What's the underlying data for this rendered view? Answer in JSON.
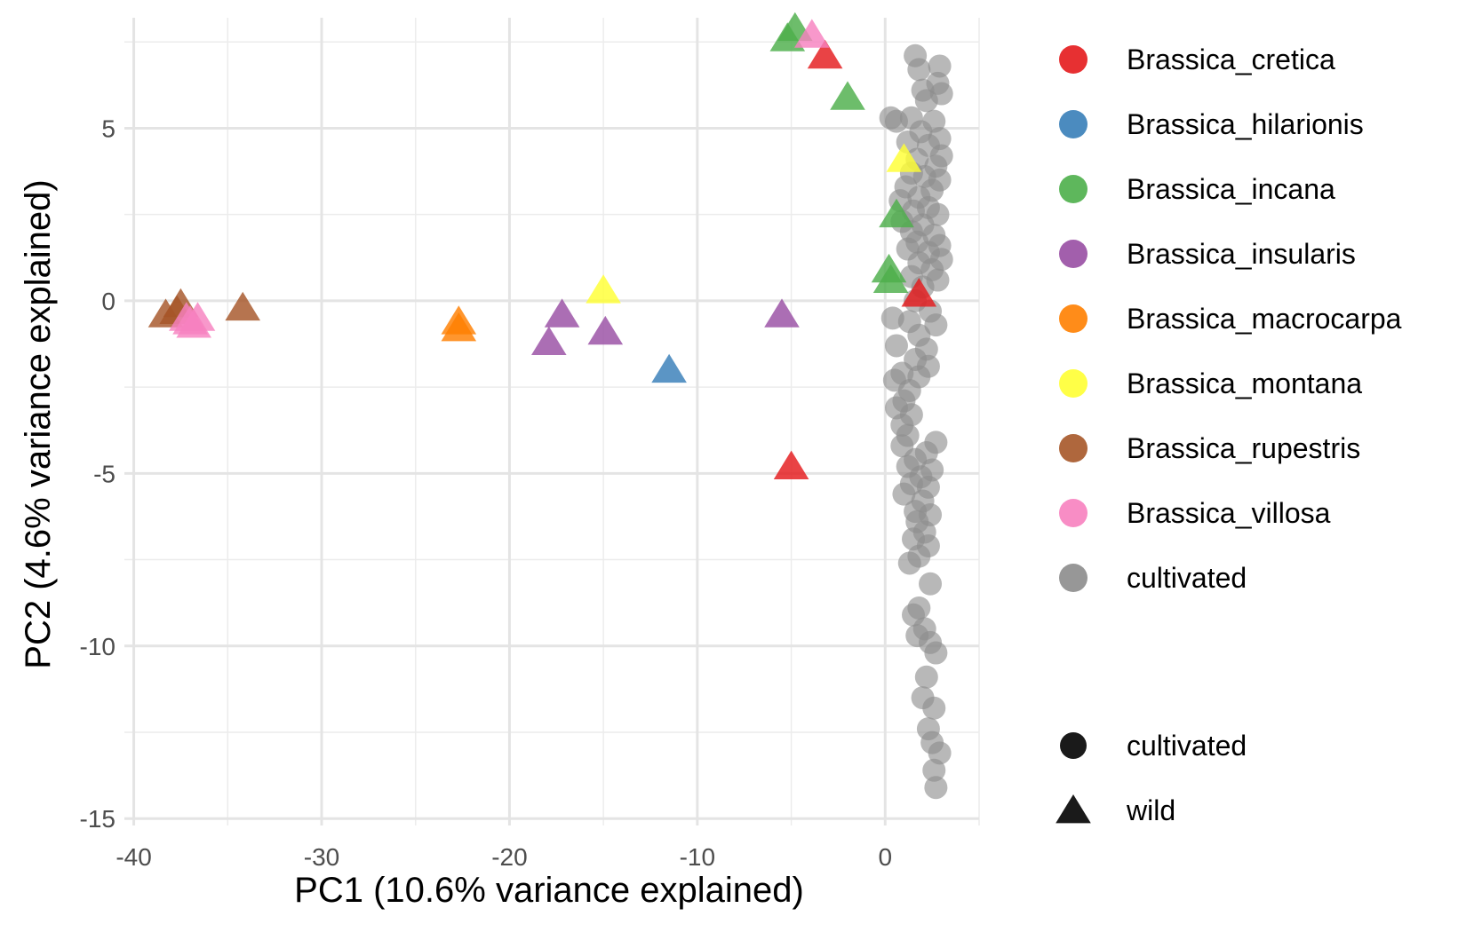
{
  "chart_data": {
    "type": "scatter",
    "title": "",
    "xlabel": "PC1 (10.6% variance explained)",
    "ylabel": "PC2 (4.6% variance explained)",
    "xlim": [
      -40.5,
      5
    ],
    "ylim": [
      -15.2,
      8.2
    ],
    "x_ticks": [
      -40,
      -30,
      -20,
      -10,
      0
    ],
    "x_tick_labels": [
      "-40",
      "-30",
      "-20",
      "-10",
      "0"
    ],
    "y_ticks": [
      -15,
      -10,
      -5,
      0,
      5
    ],
    "y_tick_labels": [
      "-15",
      "-10",
      "-5",
      "0",
      "5"
    ],
    "grid": true,
    "legend_position": "right",
    "color_legend": [
      {
        "name": "Brassica_cretica",
        "color": "#E41A1C"
      },
      {
        "name": "Brassica_hilarionis",
        "color": "#377EB8"
      },
      {
        "name": "Brassica_incana",
        "color": "#4DAF4A"
      },
      {
        "name": "Brassica_insularis",
        "color": "#984EA3"
      },
      {
        "name": "Brassica_macrocarpa",
        "color": "#FF7F00"
      },
      {
        "name": "Brassica_montana",
        "color": "#FFFF33"
      },
      {
        "name": "Brassica_rupestris",
        "color": "#A65628"
      },
      {
        "name": "Brassica_villosa",
        "color": "#F781BF"
      },
      {
        "name": "cultivated",
        "color": "#8C8C8C"
      }
    ],
    "shape_legend": [
      {
        "name": "cultivated",
        "shape": "circle"
      },
      {
        "name": "wild",
        "shape": "triangle"
      }
    ],
    "series": [
      {
        "name": "Brassica_cretica",
        "shape": "triangle",
        "points": [
          [
            -3.2,
            7.1
          ],
          [
            -5.0,
            -4.8
          ],
          [
            1.8,
            0.2
          ]
        ]
      },
      {
        "name": "Brassica_hilarionis",
        "shape": "triangle",
        "points": [
          [
            -11.5,
            -2.0
          ]
        ]
      },
      {
        "name": "Brassica_incana",
        "shape": "triangle",
        "points": [
          [
            -4.8,
            7.9
          ],
          [
            -5.2,
            7.6
          ],
          [
            -2.0,
            5.9
          ],
          [
            0.3,
            0.6
          ],
          [
            0.2,
            0.9
          ],
          [
            0.6,
            2.5
          ]
        ]
      },
      {
        "name": "Brassica_insularis",
        "shape": "triangle",
        "points": [
          [
            -17.2,
            -0.4
          ],
          [
            -17.9,
            -1.2
          ],
          [
            -14.9,
            -0.9
          ],
          [
            -5.5,
            -0.4
          ]
        ]
      },
      {
        "name": "Brassica_macrocarpa",
        "shape": "triangle",
        "points": [
          [
            -22.7,
            -0.6
          ],
          [
            -22.7,
            -0.8
          ]
        ]
      },
      {
        "name": "Brassica_montana",
        "shape": "triangle",
        "points": [
          [
            -15.0,
            0.3
          ],
          [
            1.0,
            4.1
          ]
        ]
      },
      {
        "name": "Brassica_rupestris",
        "shape": "triangle",
        "points": [
          [
            -34.2,
            -0.2
          ],
          [
            -37.5,
            -0.1
          ],
          [
            -38.3,
            -0.4
          ],
          [
            -37.7,
            -0.3
          ]
        ]
      },
      {
        "name": "Brassica_villosa",
        "shape": "triangle",
        "points": [
          [
            -3.9,
            7.7
          ],
          [
            -36.6,
            -0.5
          ],
          [
            -37.0,
            -0.6
          ],
          [
            -36.8,
            -0.7
          ],
          [
            -37.2,
            -0.5
          ]
        ]
      },
      {
        "name": "cultivated",
        "shape": "circle",
        "points": [
          [
            1.6,
            7.1
          ],
          [
            1.8,
            6.7
          ],
          [
            2.9,
            6.8
          ],
          [
            2.8,
            6.3
          ],
          [
            2.0,
            6.1
          ],
          [
            3.0,
            6.0
          ],
          [
            2.2,
            5.8
          ],
          [
            0.3,
            5.3
          ],
          [
            0.6,
            5.2
          ],
          [
            1.4,
            5.3
          ],
          [
            2.6,
            5.2
          ],
          [
            1.9,
            4.9
          ],
          [
            2.9,
            4.7
          ],
          [
            1.2,
            4.6
          ],
          [
            2.3,
            4.5
          ],
          [
            3.0,
            4.2
          ],
          [
            1.7,
            4.1
          ],
          [
            2.7,
            3.9
          ],
          [
            1.4,
            3.7
          ],
          [
            2.1,
            3.6
          ],
          [
            2.9,
            3.5
          ],
          [
            1.1,
            3.3
          ],
          [
            2.5,
            3.2
          ],
          [
            1.8,
            3.0
          ],
          [
            0.8,
            2.9
          ],
          [
            2.3,
            2.7
          ],
          [
            1.5,
            2.6
          ],
          [
            2.8,
            2.5
          ],
          [
            0.9,
            2.3
          ],
          [
            2.0,
            2.2
          ],
          [
            1.4,
            2.0
          ],
          [
            2.6,
            1.9
          ],
          [
            1.7,
            1.7
          ],
          [
            2.9,
            1.6
          ],
          [
            1.2,
            1.5
          ],
          [
            2.3,
            1.4
          ],
          [
            3.0,
            1.2
          ],
          [
            1.8,
            1.1
          ],
          [
            2.5,
            0.9
          ],
          [
            1.4,
            0.7
          ],
          [
            2.8,
            0.6
          ],
          [
            2.0,
            0.4
          ],
          [
            1.6,
            0.0
          ],
          [
            2.4,
            -0.3
          ],
          [
            0.4,
            -0.5
          ],
          [
            1.3,
            -0.6
          ],
          [
            2.7,
            -0.7
          ],
          [
            1.8,
            -1.0
          ],
          [
            0.6,
            -1.3
          ],
          [
            2.2,
            -1.4
          ],
          [
            1.6,
            -1.7
          ],
          [
            2.3,
            -1.9
          ],
          [
            0.9,
            -2.1
          ],
          [
            1.8,
            -2.2
          ],
          [
            0.5,
            -2.3
          ],
          [
            1.3,
            -2.6
          ],
          [
            1.0,
            -2.9
          ],
          [
            0.6,
            -3.1
          ],
          [
            1.4,
            -3.3
          ],
          [
            0.9,
            -3.6
          ],
          [
            1.2,
            -3.9
          ],
          [
            0.9,
            -4.2
          ],
          [
            2.7,
            -4.1
          ],
          [
            2.2,
            -4.4
          ],
          [
            1.6,
            -4.6
          ],
          [
            1.2,
            -4.8
          ],
          [
            2.5,
            -4.9
          ],
          [
            1.9,
            -5.1
          ],
          [
            1.4,
            -5.3
          ],
          [
            2.3,
            -5.4
          ],
          [
            1.0,
            -5.6
          ],
          [
            2.0,
            -5.8
          ],
          [
            1.6,
            -6.1
          ],
          [
            2.4,
            -6.2
          ],
          [
            1.7,
            -6.4
          ],
          [
            2.1,
            -6.7
          ],
          [
            1.5,
            -6.9
          ],
          [
            2.3,
            -7.1
          ],
          [
            1.8,
            -7.4
          ],
          [
            1.3,
            -7.6
          ],
          [
            2.4,
            -8.2
          ],
          [
            1.8,
            -8.9
          ],
          [
            1.5,
            -9.1
          ],
          [
            2.1,
            -9.5
          ],
          [
            1.7,
            -9.7
          ],
          [
            2.4,
            -9.9
          ],
          [
            2.7,
            -10.2
          ],
          [
            2.2,
            -10.9
          ],
          [
            2.0,
            -11.5
          ],
          [
            2.6,
            -11.8
          ],
          [
            2.3,
            -12.4
          ],
          [
            2.5,
            -12.8
          ],
          [
            2.9,
            -13.1
          ],
          [
            2.6,
            -13.6
          ],
          [
            2.7,
            -14.1
          ]
        ]
      }
    ]
  }
}
